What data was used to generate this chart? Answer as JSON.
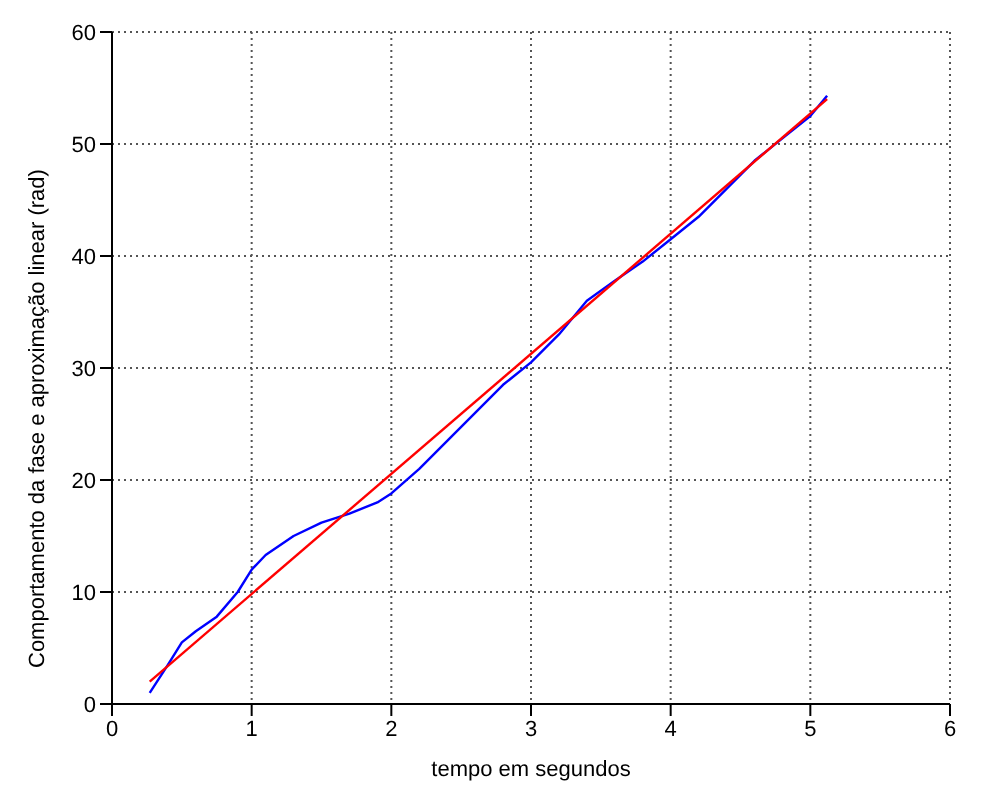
{
  "chart_data": {
    "type": "line",
    "xlabel": "tempo em segundos",
    "ylabel": "Comportamento da fase e aproximação linear (rad)",
    "xlim": [
      0,
      6
    ],
    "xticks": [
      0,
      1,
      2,
      3,
      4,
      5,
      6
    ],
    "ylim": [
      0,
      60
    ],
    "yticks": [
      0,
      10,
      20,
      30,
      40,
      50,
      60
    ],
    "grid": true,
    "legend": false,
    "marker": "none",
    "line_style": "solid",
    "series": [
      {
        "color": "#0000ff",
        "x": [
          0.27,
          0.4,
          0.5,
          0.6,
          0.75,
          0.9,
          1.0,
          1.1,
          1.3,
          1.5,
          1.7,
          1.9,
          2.0,
          2.2,
          2.4,
          2.6,
          2.8,
          3.0,
          3.2,
          3.4,
          3.6,
          3.8,
          4.0,
          4.2,
          4.4,
          4.6,
          4.8,
          5.0,
          5.12
        ],
        "values": [
          1,
          3.5,
          5.5,
          6.5,
          7.8,
          10,
          12,
          13.3,
          15,
          16.2,
          17,
          18,
          18.8,
          21,
          23.5,
          26,
          28.5,
          30.5,
          33,
          36,
          37.8,
          39.5,
          41.5,
          43.5,
          46,
          48.5,
          50.5,
          52.5,
          54.3
        ]
      },
      {
        "color": "#ff0000",
        "x": [
          0.27,
          5.12
        ],
        "values": [
          2,
          54
        ]
      }
    ]
  }
}
